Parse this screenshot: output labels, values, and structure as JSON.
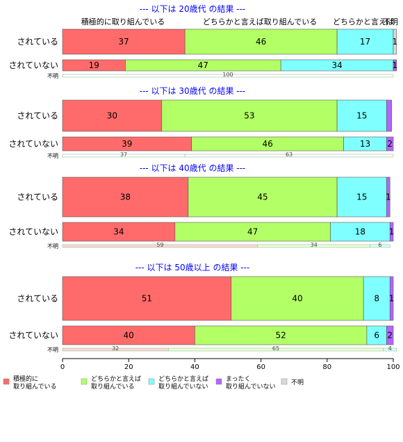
{
  "chart_data": {
    "type": "bar",
    "orientation": "horizontal",
    "stacked": true,
    "xlim": [
      0,
      100
    ],
    "x_ticks": [
      "0",
      "20",
      "40",
      "60",
      "80",
      "100"
    ],
    "header_labels": [
      "積極的に取り組んでいる",
      "どちらかと言えば取り組んでいる",
      "どちらかと言えば",
      "不明"
    ],
    "legend": [
      {
        "name": "積極的に\n取り組んでいる",
        "color": "#ff6b6b"
      },
      {
        "name": "どちらかと言えば\n取り組んでいる",
        "color": "#b3ff66"
      },
      {
        "name": "どちらかと言えば\n取り組んでいない",
        "color": "#7fffff"
      },
      {
        "name": "まったく\n取り組んでいない",
        "color": "#b266ff"
      },
      {
        "name": "不明",
        "color": "#d9d9d9"
      }
    ],
    "light_colors": [
      "#ffd6d6",
      "#ecffd9",
      "#d9ffff",
      "#ecd9ff",
      "#f2f2f2"
    ],
    "groups": [
      {
        "title": "--- 以下は 20歳代 の結果 ---",
        "rows": [
          {
            "label": "されている",
            "values": [
              37,
              46,
              17,
              0,
              1
            ],
            "labels": [
              "37",
              "46",
              "17",
              "",
              "1"
            ]
          },
          {
            "label": "されていない",
            "values": [
              19,
              47,
              34,
              1,
              0
            ],
            "labels": [
              "19",
              "47",
              "34",
              "1",
              ""
            ]
          },
          {
            "label": "不明",
            "small": true,
            "values": [
              0,
              100,
              0,
              0,
              0
            ],
            "labels": [
              "",
              "100",
              "",
              "",
              ""
            ],
            "light": [
              "#ffffff",
              "#ffffff",
              "#ffffff",
              "#ffffff",
              "#ffffff"
            ]
          }
        ]
      },
      {
        "title": "--- 以下は 30歳代 の結果 ---",
        "rows": [
          {
            "label": "されている",
            "values": [
              30,
              53,
              15,
              1.5,
              0
            ],
            "labels": [
              "30",
              "53",
              "15",
              "",
              ""
            ]
          },
          {
            "label": "されていない",
            "values": [
              39,
              46,
              13,
              2,
              0
            ],
            "labels": [
              "39",
              "46",
              "13",
              "2",
              ""
            ]
          },
          {
            "label": "不明",
            "small": true,
            "values": [
              37,
              63,
              0,
              0,
              0
            ],
            "labels": [
              "37",
              "63",
              "",
              "",
              ""
            ],
            "light": [
              "#ffffff",
              "#ffffff",
              "#ffffff",
              "#ffffff",
              "#ffffff"
            ]
          }
        ]
      },
      {
        "title": "--- 以下は 40歳代 の結果 ---",
        "rows": [
          {
            "label": "されている",
            "values": [
              38,
              45,
              15,
              1,
              0
            ],
            "labels": [
              "38",
              "45",
              "15",
              "1",
              ""
            ]
          },
          {
            "label": "されていない",
            "values": [
              34,
              47,
              18,
              1,
              0
            ],
            "labels": [
              "34",
              "47",
              "18",
              "1",
              ""
            ]
          },
          {
            "label": "不明",
            "small": true,
            "values": [
              59,
              34,
              6,
              0,
              0
            ],
            "labels": [
              "59",
              "34",
              "6",
              "",
              ""
            ]
          }
        ]
      },
      {
        "title": "--- 以下は 50歳以上 の結果 ---",
        "rows": [
          {
            "label": "されている",
            "values": [
              51,
              40,
              8,
              1,
              0
            ],
            "labels": [
              "51",
              "40",
              "8",
              "1",
              ""
            ]
          },
          {
            "label": "されていない",
            "values": [
              40,
              52,
              6,
              2,
              0
            ],
            "labels": [
              "40",
              "52",
              "6",
              "2",
              ""
            ]
          },
          {
            "label": "不明",
            "small": true,
            "values": [
              32,
              65,
              4,
              0,
              0
            ],
            "labels": [
              "32",
              "65",
              "4",
              "",
              ""
            ]
          }
        ]
      }
    ]
  }
}
